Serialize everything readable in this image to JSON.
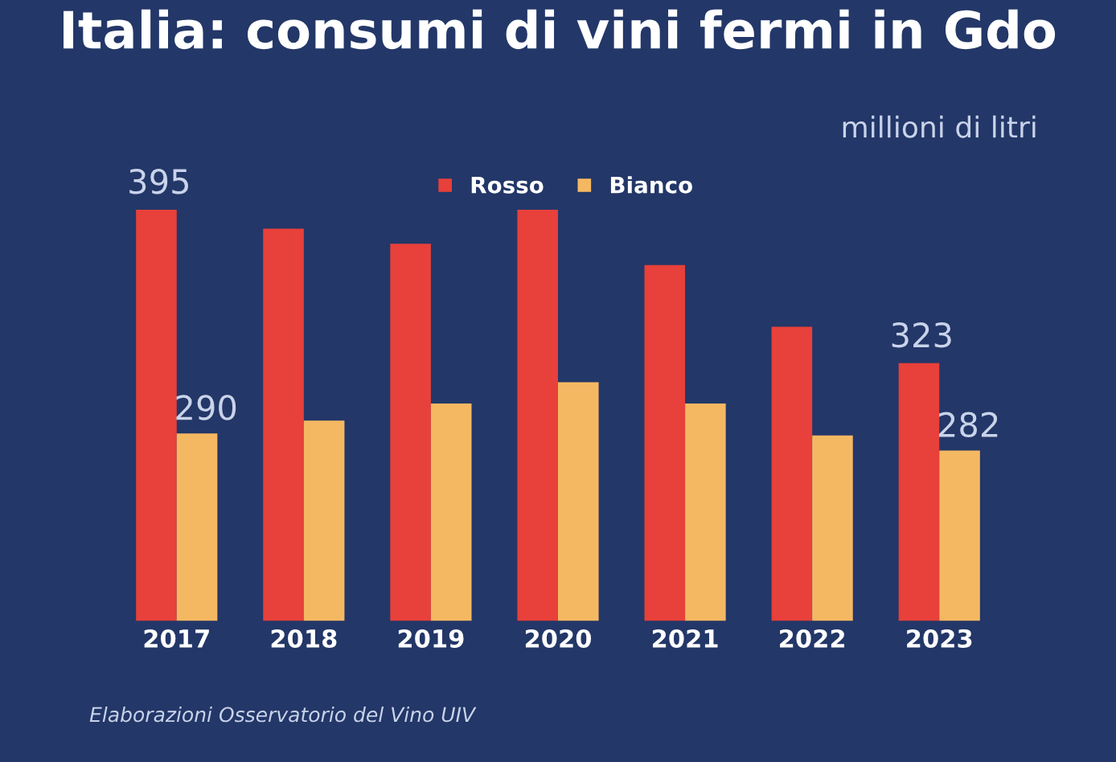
{
  "chart_data": {
    "type": "bar",
    "title": "Italia: consumi di vini fermi in Gdo",
    "subtitle": "millioni di litri",
    "categories": [
      "2017",
      "2018",
      "2019",
      "2020",
      "2021",
      "2022",
      "2023"
    ],
    "series": [
      {
        "name": "Rosso",
        "color": "#e8403a",
        "values": [
          395,
          386,
          379,
          395,
          369,
          340,
          323
        ],
        "value_labels": [
          "395",
          null,
          null,
          null,
          null,
          null,
          "323"
        ]
      },
      {
        "name": "Bianco",
        "color": "#f5b862",
        "values": [
          290,
          296,
          304,
          314,
          304,
          289,
          282
        ],
        "value_labels": [
          "290",
          null,
          null,
          null,
          null,
          null,
          "282"
        ]
      }
    ],
    "ylim": [
      202,
      395
    ],
    "legend": "top",
    "annotations": [
      "Elaborazioni Osservatorio del Vino UIV"
    ]
  }
}
